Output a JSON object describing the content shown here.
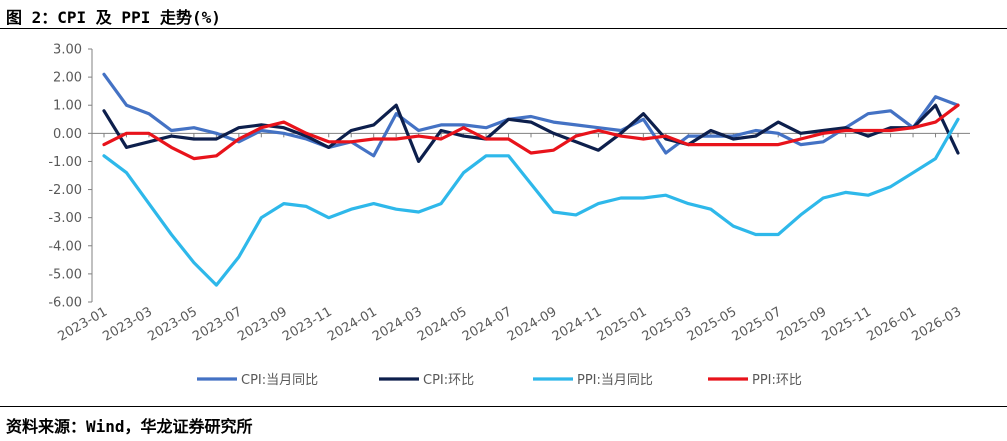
{
  "figure": {
    "title": "图 2：CPI 及 PPI 走势(%)",
    "source": "资料来源：Wind，华龙证券研究所"
  },
  "chart_data": {
    "type": "line",
    "title": "",
    "xlabel": "",
    "ylabel": "",
    "ylim": [
      -6,
      3
    ],
    "yticks": [
      "3.00",
      "2.00",
      "1.00",
      "0.00",
      "-1.00",
      "-2.00",
      "-3.00",
      "-4.00",
      "-5.00",
      "-6.00"
    ],
    "ytick_values": [
      3,
      2,
      1,
      0,
      -1,
      -2,
      -3,
      -4,
      -5,
      -6
    ],
    "grid": false,
    "legend_position": "bottom",
    "x": [
      "2023-01",
      "2023-02",
      "2023-03",
      "2023-04",
      "2023-05",
      "2023-06",
      "2023-07",
      "2023-08",
      "2023-09",
      "2023-10",
      "2023-11",
      "2023-12",
      "2024-01",
      "2024-02",
      "2024-03",
      "2024-04",
      "2024-05",
      "2024-06",
      "2024-07",
      "2024-08",
      "2024-09",
      "2024-10",
      "2024-11",
      "2024-12",
      "2025-01",
      "2025-02",
      "2025-03",
      "2025-04",
      "2025-05",
      "2025-06",
      "2025-07",
      "2025-08",
      "2025-09",
      "2025-10",
      "2025-11",
      "2025-12",
      "2026-01",
      "2026-02",
      "2026-03"
    ],
    "xtick_labels": [
      "2023-01",
      "2023-03",
      "2023-05",
      "2023-07",
      "2023-09",
      "2023-11",
      "2024-01",
      "2024-03",
      "2024-05",
      "2024-07",
      "2024-09",
      "2024-11",
      "2025-01",
      "2025-03",
      "2025-05",
      "2025-07",
      "2025-09",
      "2025-11",
      "2026-01",
      "2026-03"
    ],
    "series": [
      {
        "name": "CPI:当月同比",
        "color": "#4472C4",
        "values": [
          2.1,
          1.0,
          0.7,
          0.1,
          0.2,
          0.0,
          -0.3,
          0.1,
          0.0,
          -0.2,
          -0.5,
          -0.3,
          -0.8,
          0.7,
          0.1,
          0.3,
          0.3,
          0.2,
          0.5,
          0.6,
          0.4,
          0.3,
          0.2,
          0.1,
          0.5,
          -0.7,
          -0.1,
          -0.1,
          -0.1,
          0.1,
          0.0,
          -0.4,
          -0.3,
          0.2,
          0.7,
          0.8,
          0.2,
          1.3,
          1.0
        ]
      },
      {
        "name": "CPI:环比",
        "color": "#0D1F4C",
        "values": [
          0.8,
          -0.5,
          -0.3,
          -0.1,
          -0.2,
          -0.2,
          0.2,
          0.3,
          0.2,
          -0.1,
          -0.5,
          0.1,
          0.3,
          1.0,
          -1.0,
          0.1,
          -0.1,
          -0.2,
          0.5,
          0.4,
          0.0,
          -0.3,
          -0.6,
          0.0,
          0.7,
          -0.2,
          -0.4,
          0.1,
          -0.2,
          -0.1,
          0.4,
          0.0,
          0.1,
          0.2,
          -0.1,
          0.2,
          0.2,
          1.0,
          -0.7
        ]
      },
      {
        "name": "PPI:当月同比",
        "color": "#2EB8EA",
        "values": [
          -0.8,
          -1.4,
          -2.5,
          -3.6,
          -4.6,
          -5.4,
          -4.4,
          -3.0,
          -2.5,
          -2.6,
          -3.0,
          -2.7,
          -2.5,
          -2.7,
          -2.8,
          -2.5,
          -1.4,
          -0.8,
          -0.8,
          -1.8,
          -2.8,
          -2.9,
          -2.5,
          -2.3,
          -2.3,
          -2.2,
          -2.5,
          -2.7,
          -3.3,
          -3.6,
          -3.6,
          -2.9,
          -2.3,
          -2.1,
          -2.2,
          -1.9,
          -1.4,
          -0.9,
          0.5
        ]
      },
      {
        "name": "PPI:环比",
        "color": "#E8131B",
        "values": [
          -0.4,
          0.0,
          0.0,
          -0.5,
          -0.9,
          -0.8,
          -0.2,
          0.2,
          0.4,
          0.0,
          -0.3,
          -0.3,
          -0.2,
          -0.2,
          -0.1,
          -0.2,
          0.2,
          -0.2,
          -0.2,
          -0.7,
          -0.6,
          -0.1,
          0.1,
          -0.1,
          -0.2,
          -0.1,
          -0.4,
          -0.4,
          -0.4,
          -0.4,
          -0.4,
          -0.2,
          0.0,
          0.1,
          0.1,
          0.1,
          0.2,
          0.4,
          1.0
        ]
      }
    ]
  }
}
